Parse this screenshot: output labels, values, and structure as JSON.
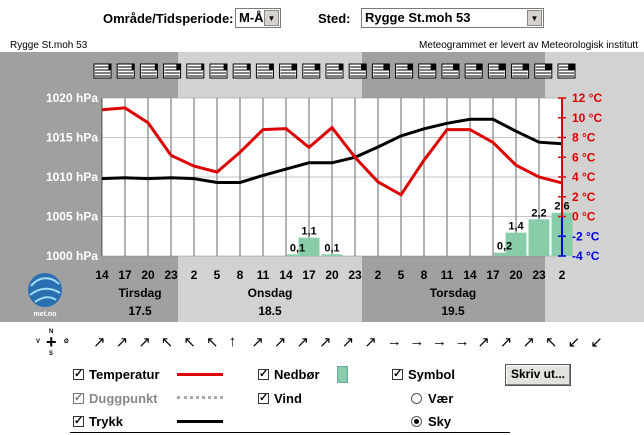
{
  "controls": {
    "area_label": "Område/Tidsperiode:",
    "area_value": "M-Å",
    "place_label": "Sted:",
    "place_value": "Rygge St.moh 53"
  },
  "header": {
    "station": "Rygge St.moh 53",
    "credit": "Meteogrammet er levert av Meteorologisk institutt"
  },
  "logo_text": "met.no",
  "chart_data": {
    "type": "line",
    "hours": [
      "14",
      "17",
      "20",
      "23",
      "2",
      "5",
      "8",
      "11",
      "14",
      "17",
      "20",
      "23",
      "2",
      "5",
      "8",
      "11",
      "14",
      "17",
      "20",
      "23",
      "2"
    ],
    "days": [
      {
        "name": "Tirsdag",
        "date": "17.5"
      },
      {
        "name": "Onsdag",
        "date": "18.5"
      },
      {
        "name": "Torsdag",
        "date": "19.5"
      }
    ],
    "pressure_axis": {
      "labels": [
        "1020 hPa",
        "1015 hPa",
        "1010 hPa",
        "1005 hPa",
        "1000 hPa"
      ],
      "min": 1000,
      "max": 1020
    },
    "temp_axis": {
      "labels": [
        "12 °C",
        "10 °C",
        "8 °C",
        "6 °C",
        "4 °C",
        "2 °C",
        "0 °C",
        "-2 °C",
        "-4 °C"
      ],
      "min": -4,
      "max": 12
    },
    "series": [
      {
        "name": "Temperatur",
        "color": "#dd0000",
        "values": [
          10.8,
          11.0,
          9.5,
          6.2,
          5.1,
          4.5,
          6.5,
          8.8,
          8.9,
          7.0,
          9.0,
          6.0,
          3.5,
          2.2,
          5.7,
          8.8,
          8.8,
          7.5,
          5.2,
          4.0,
          3.4
        ]
      },
      {
        "name": "Trykk",
        "color": "#000000",
        "values": [
          1009.8,
          1009.9,
          1009.8,
          1009.9,
          1009.8,
          1009.3,
          1009.3,
          1010.2,
          1011.0,
          1011.8,
          1011.8,
          1012.5,
          1013.8,
          1015.2,
          1016.1,
          1016.8,
          1017.3,
          1017.3,
          1015.8,
          1014.4,
          1014.2
        ]
      }
    ],
    "precip": [
      {
        "label": "0,1",
        "hour_index": 8,
        "value": 0.1
      },
      {
        "label": "1,1",
        "hour_index": 8.5,
        "value": 1.1
      },
      {
        "label": "0,1",
        "hour_index": 9.5,
        "value": 0.1
      },
      {
        "label": "0,2",
        "hour_index": 17,
        "value": 0.2
      },
      {
        "label": "1,4",
        "hour_index": 17.5,
        "value": 1.4
      },
      {
        "label": "2,2",
        "hour_index": 18.5,
        "value": 2.2
      },
      {
        "label": "2,6",
        "hour_index": 19.5,
        "value": 2.6
      }
    ],
    "precip_color": "#88ccaa"
  },
  "wind_arrows": [
    "↗",
    "↗",
    "↗",
    "↖",
    "↖",
    "↖",
    "↑",
    "↗",
    "↗",
    "↗",
    "↗",
    "↗",
    "↗",
    "→",
    "→",
    "→",
    "→",
    "↗",
    "↗",
    "↗",
    "↖",
    "↙",
    "↙"
  ],
  "compass": {
    "n": "N",
    "s": "S",
    "v": "V",
    "o": "Ø"
  },
  "legend": {
    "temperatur": "Temperatur",
    "duggpunkt": "Duggpunkt",
    "trykk": "Trykk",
    "nedbor": "Nedbør",
    "vind": "Vind",
    "symbol": "Symbol",
    "vaer": "Vær",
    "sky": "Sky",
    "print": "Skriv ut..."
  }
}
